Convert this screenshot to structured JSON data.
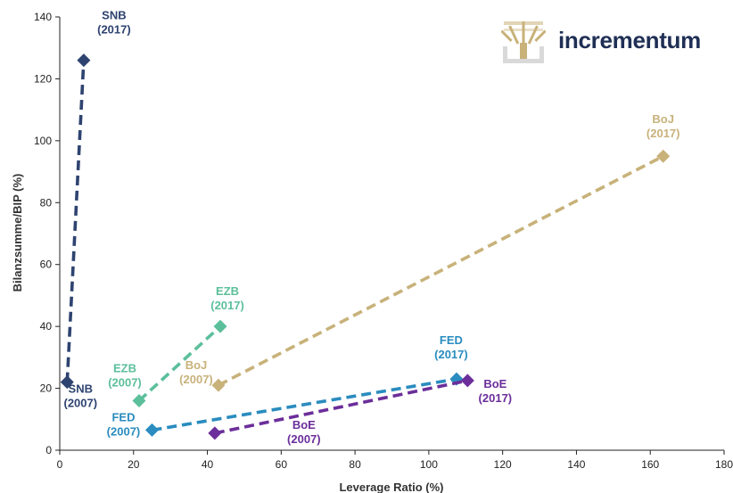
{
  "brand": {
    "name": "incrementum",
    "logo_icon": "tree-icon",
    "logo_color": "#c8b27a",
    "text_color": "#1f2f55"
  },
  "chart_data": {
    "type": "scatter",
    "xlabel": "Leverage Ratio (%)",
    "ylabel": "Bilanzsumme/BIP (%)",
    "xlim": [
      0,
      180
    ],
    "ylim": [
      0,
      140
    ],
    "xticks": [
      "0",
      "20",
      "40",
      "60",
      "80",
      "100",
      "120",
      "140",
      "160",
      "180"
    ],
    "yticks": [
      "0",
      "20",
      "40",
      "60",
      "80",
      "100",
      "120",
      "140"
    ],
    "grid": false,
    "marker": "diamond",
    "line_style": "dashed",
    "series": [
      {
        "name": "SNB",
        "color": "#2e4370",
        "points": [
          {
            "x": 2,
            "y": 22,
            "label": [
              "SNB",
              "(2007)"
            ]
          },
          {
            "x": 6.5,
            "y": 126,
            "label": [
              "SNB",
              "(2017)"
            ]
          }
        ]
      },
      {
        "name": "EZB",
        "color": "#5cbf9b",
        "points": [
          {
            "x": 21.5,
            "y": 16,
            "label": [
              "EZB",
              "(2007)"
            ]
          },
          {
            "x": 43.5,
            "y": 40,
            "label": [
              "EZB",
              "(2017)"
            ]
          }
        ]
      },
      {
        "name": "BoJ",
        "color": "#c8b27a",
        "points": [
          {
            "x": 43,
            "y": 21,
            "label": [
              "BoJ",
              "(2007)"
            ]
          },
          {
            "x": 163.5,
            "y": 95,
            "label": [
              "BoJ",
              "(2017)"
            ]
          }
        ]
      },
      {
        "name": "FED",
        "color": "#2a8cbf",
        "points": [
          {
            "x": 25,
            "y": 6.5,
            "label": [
              "FED",
              "(2007)"
            ]
          },
          {
            "x": 107.5,
            "y": 23,
            "label": [
              "FED",
              "(2017)"
            ]
          }
        ]
      },
      {
        "name": "BoE",
        "color": "#6b2e9a",
        "points": [
          {
            "x": 42,
            "y": 5.5,
            "label": [
              "BoE",
              "(2007)"
            ]
          },
          {
            "x": 110.5,
            "y": 22.5,
            "label": [
              "BoE",
              "(2017)"
            ]
          }
        ]
      }
    ]
  }
}
